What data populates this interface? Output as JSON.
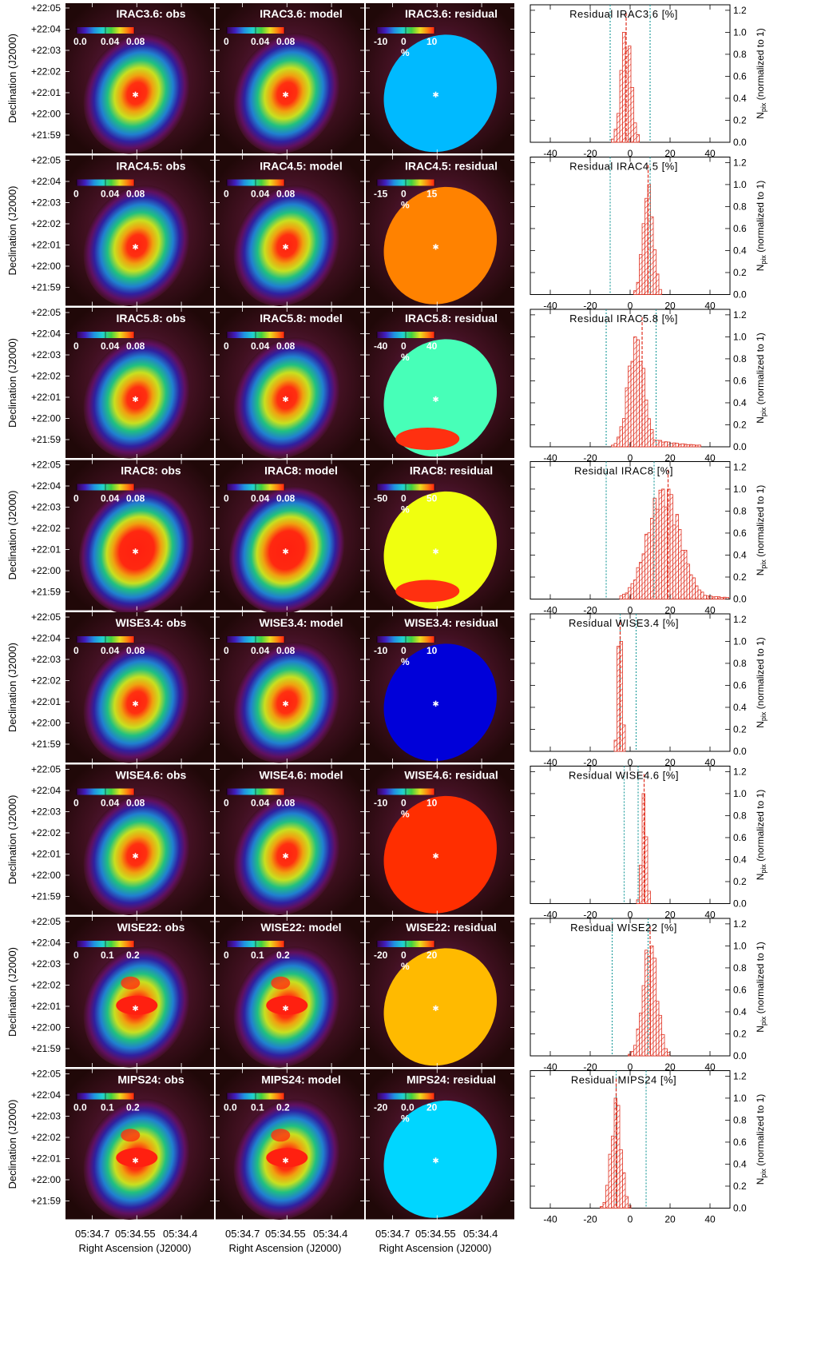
{
  "figure": {
    "rows": [
      {
        "band": "IRAC3.6",
        "obs_title": "IRAC3.6: obs",
        "model_title": "IRAC3.6: model",
        "resid_title": "IRAC3.6: residual",
        "flux_ticks": [
          "0.0",
          "0.04",
          "0.08"
        ],
        "flux_ticks_model": [
          "0",
          "0.04",
          "0.08"
        ],
        "resid_ticks": [
          "-10",
          "0",
          "10"
        ],
        "hist_title": "Residual IRAC3.6 [%]",
        "resid_level": -0.35,
        "hist_peak": -2,
        "hist_spread": 2.5,
        "hist_tail": 0,
        "cyan_lines": [
          -10,
          10
        ],
        "red_line": -2
      },
      {
        "band": "IRAC4.5",
        "obs_title": "IRAC4.5: obs",
        "model_title": "IRAC4.5: model",
        "resid_title": "IRAC4.5: residual",
        "flux_ticks": [
          "0",
          "0.04",
          "0.08"
        ],
        "flux_ticks_model": [
          "0",
          "0.04",
          "0.08"
        ],
        "resid_ticks": [
          "-15",
          "0",
          "15"
        ],
        "hist_title": "Residual IRAC4.5 [%]",
        "resid_level": 0.45,
        "hist_peak": 9,
        "hist_spread": 2.5,
        "hist_tail": 0,
        "cyan_lines": [
          -10,
          10
        ],
        "red_line": 9
      },
      {
        "band": "IRAC5.8",
        "obs_title": "IRAC5.8: obs",
        "model_title": "IRAC5.8: model",
        "resid_title": "IRAC5.8: residual",
        "flux_ticks": [
          "0",
          "0.04",
          "0.08"
        ],
        "flux_ticks_model": [
          "0",
          "0.04",
          "0.08"
        ],
        "resid_ticks": [
          "-40",
          "0",
          "40"
        ],
        "hist_title": "Residual IRAC5.8 [%]",
        "resid_level": -0.1,
        "hist_peak": 3,
        "hist_spread": 4,
        "hist_tail": 1,
        "cyan_lines": [
          -12,
          13
        ],
        "red_line": 6
      },
      {
        "band": "IRAC8",
        "obs_title": "IRAC8: obs",
        "model_title": "IRAC8: model",
        "resid_title": "IRAC8: residual",
        "flux_ticks": [
          "0",
          "0.04",
          "0.08"
        ],
        "flux_ticks_model": [
          "0",
          "0.04",
          "0.08"
        ],
        "resid_ticks": [
          "-50",
          "0",
          "50"
        ],
        "hist_title": "Residual IRAC8 [%]",
        "resid_level": 0.2,
        "hist_peak": 17,
        "hist_spread": 8,
        "hist_tail": 1,
        "cyan_lines": [
          -12,
          12
        ],
        "red_line": 19
      },
      {
        "band": "WISE3.4",
        "obs_title": "WISE3.4: obs",
        "model_title": "WISE3.4: model",
        "resid_title": "WISE3.4: residual",
        "flux_ticks": [
          "0",
          "0.04",
          "0.08"
        ],
        "flux_ticks_model": [
          "0",
          "0.04",
          "0.08"
        ],
        "resid_ticks": [
          "-10",
          "0",
          "10"
        ],
        "hist_title": "Residual WISE3.4 [%]",
        "resid_level": -0.75,
        "hist_peak": -5,
        "hist_spread": 1,
        "hist_tail": 0,
        "cyan_lines": [
          -5,
          3
        ],
        "red_line": -5
      },
      {
        "band": "WISE4.6",
        "obs_title": "WISE4.6: obs",
        "model_title": "WISE4.6: model",
        "resid_title": "WISE4.6: residual",
        "flux_ticks": [
          "0",
          "0.04",
          "0.08"
        ],
        "flux_ticks_model": [
          "0",
          "0.04",
          "0.08"
        ],
        "resid_ticks": [
          "-10",
          "0",
          "10"
        ],
        "hist_title": "Residual WISE4.6 [%]",
        "resid_level": 0.6,
        "hist_peak": 7,
        "hist_spread": 1.2,
        "hist_tail": 0,
        "cyan_lines": [
          -3,
          4
        ],
        "red_line": 7
      },
      {
        "band": "WISE22",
        "obs_title": "WISE22: obs",
        "model_title": "WISE22: model",
        "resid_title": "WISE22: residual",
        "flux_ticks": [
          "0",
          "0.1",
          "0.2"
        ],
        "flux_ticks_model": [
          "0",
          "0.1",
          "0.2"
        ],
        "resid_ticks": [
          "-20",
          "0",
          "20"
        ],
        "hist_title": "Residual WISE22 [%]",
        "resid_level": 0.35,
        "hist_peak": 10,
        "hist_spread": 3.5,
        "hist_tail": 0,
        "cyan_lines": [
          -9,
          9
        ],
        "red_line": 10
      },
      {
        "band": "MIPS24",
        "obs_title": "MIPS24: obs",
        "model_title": "MIPS24: model",
        "resid_title": "MIPS24: residual",
        "flux_ticks": [
          "0.0",
          "0.1",
          "0.2"
        ],
        "flux_ticks_model": [
          "0.0",
          "0.1",
          "0.2"
        ],
        "resid_ticks": [
          "-20",
          "0.0",
          "20"
        ],
        "hist_title": "Residual MIPS24 [%]",
        "resid_level": -0.3,
        "hist_peak": -7,
        "hist_spread": 2.5,
        "hist_tail": 0,
        "cyan_lines": [
          -7,
          8
        ],
        "red_line": -7
      }
    ],
    "percent_label": "%",
    "dec_ticks": [
      "+22:05",
      "+22:04",
      "+22:03",
      "+22:02",
      "+22:01",
      "+22:00",
      "+21:59"
    ],
    "dec_label": "Declination (J2000)",
    "ra_ticks": [
      "05:34.7",
      "05:34.55",
      "05:34.4"
    ],
    "ra_label": "Right Ascension (J2000)",
    "hist_xticks": [
      "-40",
      "-20",
      "0",
      "20",
      "40"
    ],
    "hist_yticks": [
      "0.0",
      "0.2",
      "0.4",
      "0.6",
      "0.8",
      "1.0",
      "1.2"
    ],
    "hist_ylabel": "N",
    "hist_ylabel_sub": "pix",
    "hist_ylabel_rest": "(normalized to 1)",
    "colors": {
      "bg": "#2a0a0a",
      "hist_red": "#e03020",
      "cyan": "#2aa0a0",
      "center": "#ffffff"
    }
  }
}
